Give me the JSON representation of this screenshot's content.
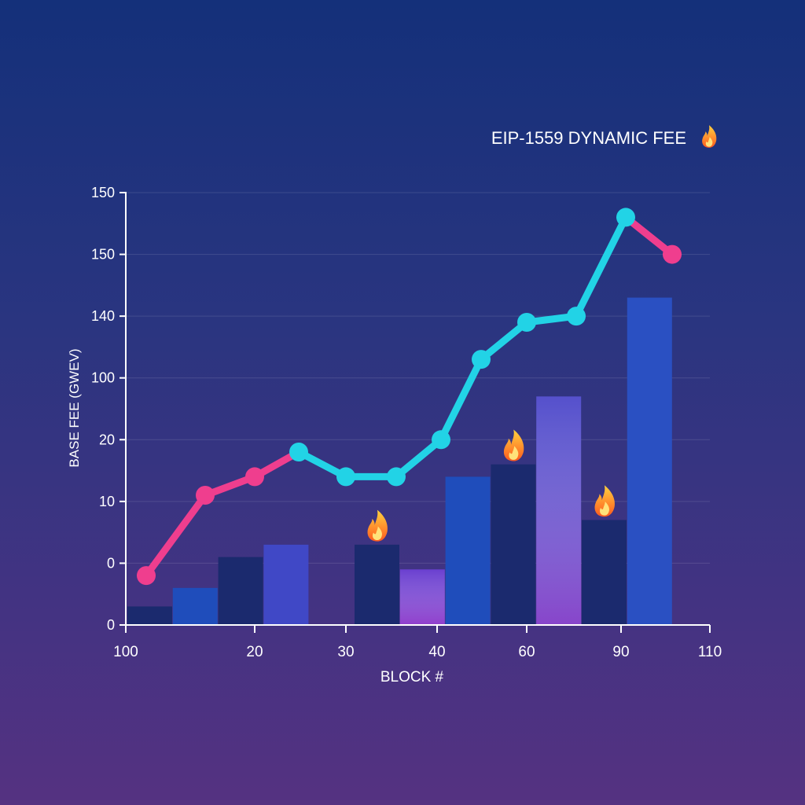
{
  "chart_data": {
    "type": "bar",
    "title": "EIP-1559 DYNAMIC FEE",
    "title_icon": "fire-icon",
    "xlabel": "BLOCK #",
    "ylabel": "BASE FEE (GWEV)",
    "grid": true,
    "y_tick_labels": [
      "0",
      "0",
      "10",
      "20",
      "100",
      "140",
      "150",
      "150"
    ],
    "x_tick_labels": [
      "100",
      "20",
      "30",
      "40",
      "60",
      "90",
      "110"
    ],
    "bars": {
      "values": [
        0.3,
        0.6,
        1.1,
        1.3,
        null,
        1.3,
        0.9,
        2.4,
        2.6,
        3.7,
        1.7,
        5.3
      ],
      "colors": [
        "#1b2a6e",
        "#1f4dbb",
        "#1b2a6e",
        "#4048c6",
        null,
        "#1b2a6e",
        "#6a3fd0",
        "#1f4dbb",
        "#1b2a6e",
        "#5550cc",
        "#1b2a6e",
        "#2a50c2"
      ],
      "fire_markers": [
        5,
        8,
        10
      ]
    },
    "line": {
      "values": [
        0.8,
        2.1,
        2.4,
        2.8,
        2.4,
        2.4,
        3.0,
        4.3,
        4.9,
        5.0,
        6.6,
        6.0
      ],
      "color_ranges": [
        {
          "from": 0,
          "to": 3,
          "color": "#ef3e8e"
        },
        {
          "from": 3,
          "to": 10,
          "color": "#22d3e6"
        },
        {
          "from": 10,
          "to": 11,
          "color": "#ef3e8e"
        }
      ],
      "point_colors": [
        "#ef3e8e",
        "#ef3e8e",
        "#ef3e8e",
        "#22d3e6",
        "#22d3e6",
        "#22d3e6",
        "#22d3e6",
        "#22d3e6",
        "#22d3e6",
        "#22d3e6",
        "#22d3e6",
        "#ef3e8e"
      ]
    },
    "ylim": [
      0,
      7
    ]
  }
}
